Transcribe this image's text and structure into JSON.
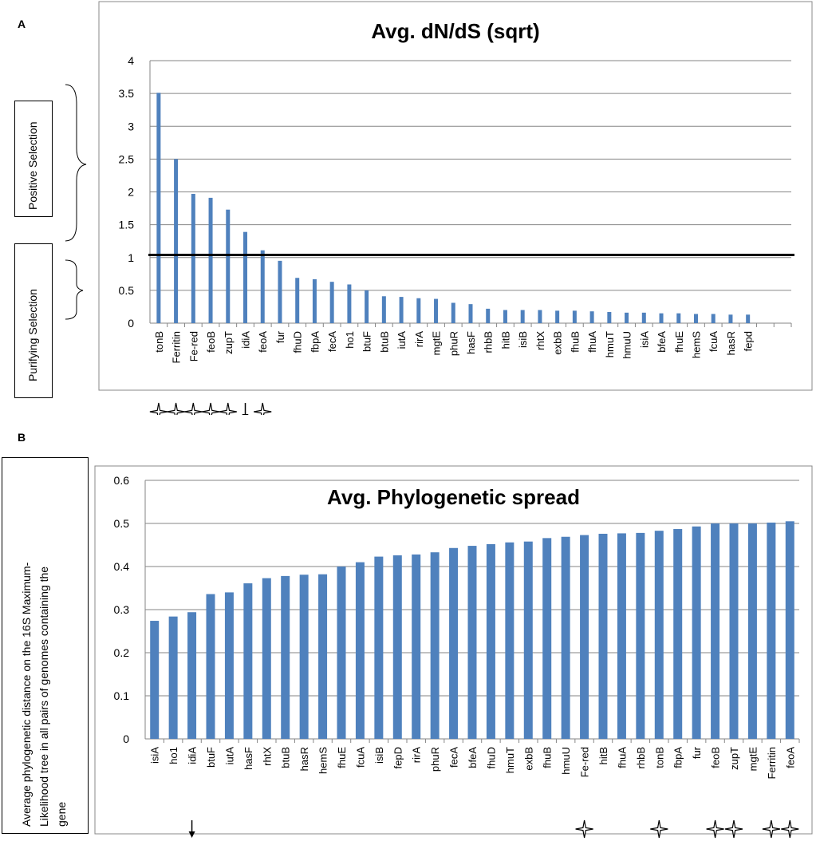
{
  "panels": {
    "a": {
      "label": "A",
      "positive": "Positive  Selection",
      "purifying": "Purifying  Selection"
    },
    "b": {
      "label": "B",
      "ylabel_lines": [
        "Average phylogenetic distance  on the 16S Maximum-",
        "Likelihood tree  in all pairs  of genomes  containing the",
        "gene"
      ]
    }
  },
  "chart_data": [
    {
      "type": "bar",
      "title": "Avg. dN/dS (sqrt)",
      "xlabel": "",
      "ylabel": "",
      "ylim": [
        0,
        4
      ],
      "yticks": [
        "0",
        "0.5",
        "1",
        "1.5",
        "2",
        "2.5",
        "3",
        "3.5",
        "4"
      ],
      "threshold": 1.04,
      "bar_color": "#4f81bd",
      "categories": [
        "tonB",
        "Ferritin",
        "Fe-red",
        "feoB",
        "zupT",
        "idiA",
        "feoA",
        "fur",
        "fhuD",
        "fbpA",
        "fecA",
        "ho1",
        "btuF",
        "btuB",
        "iutA",
        "rirA",
        "mgtE",
        "phuR",
        "hasF",
        "rhbB",
        "hitB",
        "isiB",
        "rhtX",
        "exbB",
        "fhuB",
        "fhuA",
        "hmuT",
        "hmuU",
        "isiA",
        "bfeA",
        "fhuE",
        "hemS",
        "fcuA",
        "hasR",
        "fepd",
        "",
        ""
      ],
      "values": [
        3.51,
        2.5,
        1.97,
        1.91,
        1.73,
        1.39,
        1.11,
        0.95,
        0.69,
        0.67,
        0.63,
        0.59,
        0.5,
        0.41,
        0.4,
        0.38,
        0.37,
        0.31,
        0.29,
        0.22,
        0.2,
        0.2,
        0.2,
        0.19,
        0.19,
        0.18,
        0.17,
        0.16,
        0.16,
        0.15,
        0.15,
        0.14,
        0.14,
        0.13,
        0.13,
        null,
        null
      ],
      "markers": [
        {
          "category": "tonB",
          "symbol": "star"
        },
        {
          "category": "Ferritin",
          "symbol": "star"
        },
        {
          "category": "Fe-red",
          "symbol": "star"
        },
        {
          "category": "feoB",
          "symbol": "star"
        },
        {
          "category": "zupT",
          "symbol": "star"
        },
        {
          "category": "idiA",
          "symbol": "arrow"
        },
        {
          "category": "feoA",
          "symbol": "star"
        }
      ]
    },
    {
      "type": "bar",
      "title": "Avg. Phylogenetic spread",
      "xlabel": "",
      "ylabel": "Average phylogenetic distance  on the 16S Maximum-Likelihood tree  in all pairs  of genomes  containing the gene",
      "ylim": [
        0,
        0.6
      ],
      "yticks": [
        "0",
        "0.1",
        "0.2",
        "0.3",
        "0.4",
        "0.5",
        "0.6"
      ],
      "bar_color": "#4f81bd",
      "categories": [
        "isiA",
        "ho1",
        "idiA",
        "btuF",
        "iutA",
        "hasF",
        "rhtX",
        "btuB",
        "hasR",
        "hemS",
        "fhuE",
        "fcuA",
        "isiB",
        "fepD",
        "rirA",
        "phuR",
        "fecA",
        "bfeA",
        "fhuD",
        "hmuT",
        "exbB",
        "fhuB",
        "hmuU",
        "Fe-red",
        "hitB",
        "fhuA",
        "rhbB",
        "tonB",
        "fbpA",
        "fur",
        "feoB",
        "zupT",
        "mgtE",
        "Ferritin",
        "feoA"
      ],
      "values": [
        0.274,
        0.284,
        0.294,
        0.336,
        0.34,
        0.361,
        0.373,
        0.378,
        0.381,
        0.382,
        0.4,
        0.41,
        0.423,
        0.426,
        0.428,
        0.433,
        0.443,
        0.448,
        0.452,
        0.456,
        0.458,
        0.466,
        0.469,
        0.473,
        0.476,
        0.477,
        0.478,
        0.483,
        0.487,
        0.493,
        0.5,
        0.5,
        0.5,
        0.502,
        0.505
      ],
      "markers": [
        {
          "category": "idiA",
          "symbol": "arrow"
        },
        {
          "category": "Fe-red",
          "symbol": "star"
        },
        {
          "category": "tonB",
          "symbol": "star"
        },
        {
          "category": "feoB",
          "symbol": "star"
        },
        {
          "category": "zupT",
          "symbol": "star"
        },
        {
          "category": "Ferritin",
          "symbol": "star"
        },
        {
          "category": "feoA",
          "symbol": "star"
        }
      ]
    }
  ]
}
